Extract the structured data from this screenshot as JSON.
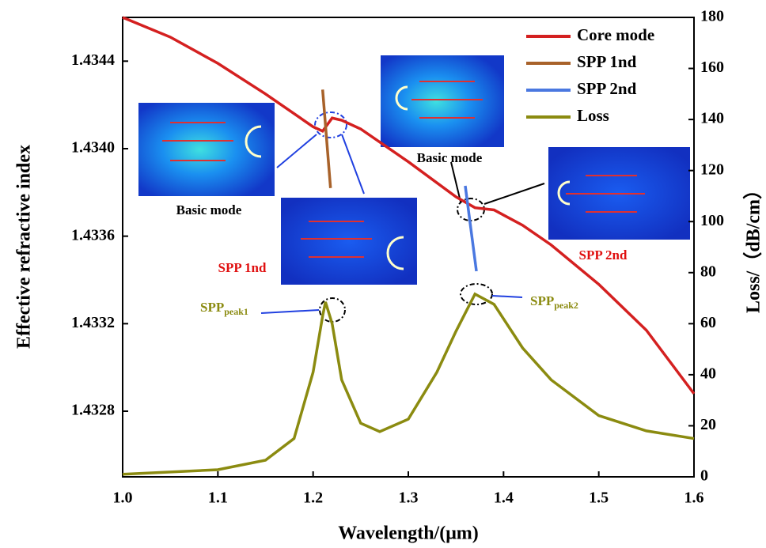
{
  "chart_data": {
    "type": "line",
    "xlabel": "Wavelength/(μm)",
    "ylabel": "Effective refractive index",
    "y2label": "Loss/（dB/cm）",
    "xlim": [
      1.0,
      1.6
    ],
    "xticks": [
      {
        "value": 1.0,
        "label": "1.0"
      },
      1.1,
      1.2,
      1.3,
      1.4,
      1.5,
      1.6
    ],
    "ylim": [
      1.4325,
      1.4346
    ],
    "yticks": [
      1.4328,
      1.4332,
      1.4336,
      {
        "value": 1.434,
        "label": "1.4340"
      },
      1.4344
    ],
    "y2lim": [
      0,
      180
    ],
    "y2ticks": [
      0,
      20,
      40,
      60,
      80,
      100,
      120,
      140,
      160,
      180
    ],
    "legend": "upper right",
    "series": [
      {
        "name": "Core mode",
        "color": "#d42020",
        "x": [
          1.0,
          1.05,
          1.1,
          1.15,
          1.18,
          1.2,
          1.21,
          1.22,
          1.23,
          1.25,
          1.3,
          1.35,
          1.37,
          1.39,
          1.42,
          1.45,
          1.5,
          1.55,
          1.6
        ],
        "values": [
          1.4346,
          1.43451,
          1.43439,
          1.43425,
          1.43416,
          1.4341,
          1.43408,
          1.43414,
          1.43413,
          1.43409,
          1.43394,
          1.43378,
          1.43373,
          1.43372,
          1.43365,
          1.43356,
          1.43338,
          1.43317,
          1.43288
        ]
      },
      {
        "name": "SPP 1nd",
        "color": "#a8622a",
        "x": [
          1.21,
          1.2183
        ],
        "values": [
          1.43427,
          1.43382
        ]
      },
      {
        "name": "SPP 2nd",
        "color": "#4a78e0",
        "x": [
          1.3598,
          1.3715
        ],
        "values": [
          1.43383,
          1.43344
        ]
      },
      {
        "name": "Loss",
        "color": "#8b8b10",
        "axis": "y2",
        "x": [
          1.0,
          1.1,
          1.15,
          1.18,
          1.2,
          1.21,
          1.213,
          1.22,
          1.23,
          1.25,
          1.27,
          1.3,
          1.33,
          1.35,
          1.37,
          1.39,
          1.42,
          1.45,
          1.5,
          1.55,
          1.6
        ],
        "values": [
          1,
          2.8,
          6.5,
          15,
          41,
          63,
          68.5,
          60,
          38,
          21,
          17.7,
          22.6,
          41,
          57,
          71.6,
          67.6,
          50.5,
          38,
          24,
          18,
          15
        ]
      }
    ],
    "annotations": {
      "basic_mode_1": "Basic mode",
      "spp_1nd": "SPP 1nd",
      "basic_mode_2": "Basic mode",
      "spp_2nd": "SPP 2nd",
      "peak1": {
        "text": "SPP",
        "sub": "peak1"
      },
      "peak2": {
        "text": "SPP",
        "sub": "peak2"
      }
    }
  }
}
